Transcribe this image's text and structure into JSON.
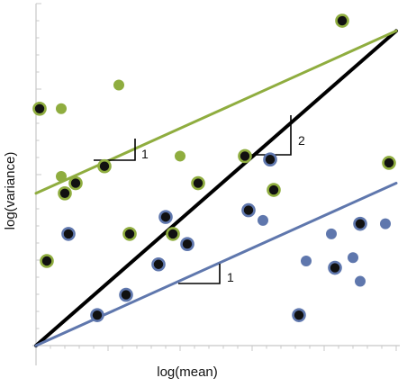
{
  "chart_data": {
    "type": "scatter",
    "xlabel": "log(mean)",
    "ylabel": "log(variance)",
    "xlim": [
      0,
      10
    ],
    "ylim": [
      0,
      10
    ],
    "grid": false,
    "tick_labels": false,
    "colors": {
      "green": "#8fad3f",
      "blue": "#5f77ad",
      "black": "#000000",
      "dot_fill": "#111111"
    },
    "series": [
      {
        "color": "#8fad3f",
        "style": "ring-dots",
        "points": [
          [
            0.1,
            7.0
          ],
          [
            0.3,
            2.5
          ],
          [
            0.8,
            4.5
          ],
          [
            1.1,
            4.8
          ],
          [
            1.9,
            5.3
          ],
          [
            2.6,
            3.3
          ],
          [
            3.8,
            3.3
          ],
          [
            4.5,
            4.8
          ],
          [
            5.8,
            5.6
          ],
          [
            6.6,
            4.6
          ],
          [
            8.5,
            9.6
          ],
          [
            9.8,
            5.4
          ]
        ]
      },
      {
        "color": "#5f77ad",
        "style": "ring-dots",
        "points": [
          [
            0.9,
            3.3
          ],
          [
            1.7,
            0.9
          ],
          [
            2.5,
            1.5
          ],
          [
            3.6,
            3.8
          ],
          [
            4.2,
            3.0
          ],
          [
            3.4,
            2.4
          ],
          [
            5.9,
            4.0
          ],
          [
            6.5,
            5.5
          ],
          [
            7.3,
            0.9
          ],
          [
            8.3,
            2.3
          ],
          [
            9.0,
            3.6
          ]
        ]
      },
      {
        "color": "#5f77ad",
        "style": "plain-dots",
        "points": [
          [
            6.3,
            3.7
          ],
          [
            7.5,
            2.5
          ],
          [
            8.2,
            3.3
          ],
          [
            8.8,
            2.6
          ],
          [
            9.0,
            1.9
          ],
          [
            9.7,
            3.6
          ]
        ]
      },
      {
        "color": "#8fad3f",
        "style": "plain-dots",
        "points": [
          [
            0.7,
            7.0
          ],
          [
            0.7,
            5.0
          ],
          [
            2.3,
            7.7
          ],
          [
            4.0,
            5.6
          ]
        ]
      }
    ],
    "lines": [
      {
        "color": "#000000",
        "from": [
          0,
          0
        ],
        "to": [
          10,
          9.3
        ]
      },
      {
        "color": "#8fad3f",
        "from": [
          0,
          4.5
        ],
        "to": [
          10,
          9.3
        ]
      },
      {
        "color": "#5f77ad",
        "from": [
          0,
          0
        ],
        "to": [
          10,
          4.8
        ]
      }
    ],
    "annotations": [
      {
        "label": "1",
        "series_color": "#8fad3f"
      },
      {
        "label": "2",
        "series_color": "#000000"
      },
      {
        "label": "1",
        "series_color": "#5f77ad"
      }
    ]
  }
}
